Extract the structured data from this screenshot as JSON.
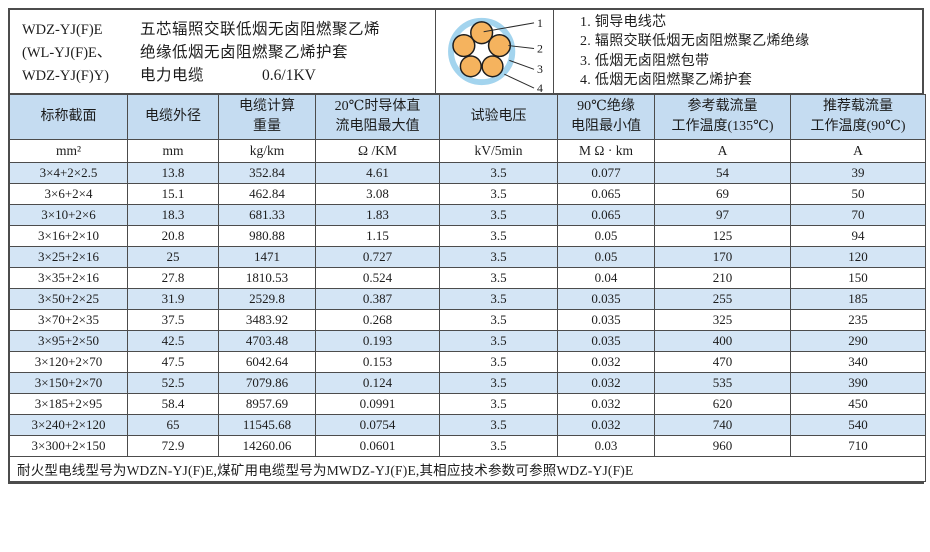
{
  "header": {
    "models": [
      "WDZ-YJ(F)E",
      "(WL-YJ(F)E、",
      "WDZ-YJ(F)Y)"
    ],
    "description_line1": "五芯辐照交联低烟无卤阻燃聚乙烯",
    "description_line2": "绝缘低烟无卤阻燃聚乙烯护套",
    "description_line3_label": "电力电缆",
    "description_line3_voltage": "0.6/1KV",
    "diagram_callouts": [
      "1",
      "2",
      "3",
      "4"
    ],
    "legend": [
      "1. 铜导电线芯",
      "2. 辐照交联低烟无卤阻燃聚乙烯绝缘",
      "3. 低烟无卤阻燃包带",
      "4. 低烟无卤阻燃聚乙烯护套"
    ]
  },
  "table": {
    "columns": [
      {
        "title": "标称截面",
        "unit": "mm²"
      },
      {
        "title": "电缆外径",
        "unit": "mm"
      },
      {
        "title": "电缆计算\n重量",
        "unit": "kg/km"
      },
      {
        "title": "20℃时导体直\n流电阻最大值",
        "unit": "Ω /KM"
      },
      {
        "title": "试验电压",
        "unit": "kV/5min"
      },
      {
        "title": "90℃绝缘\n电阻最小值",
        "unit": "M Ω · km"
      },
      {
        "title": "参考载流量\n工作温度(135℃)",
        "unit": "A"
      },
      {
        "title": "推荐载流量\n工作温度(90℃)",
        "unit": "A"
      }
    ],
    "rows": [
      [
        "3×4+2×2.5",
        "13.8",
        "352.84",
        "4.61",
        "3.5",
        "0.077",
        "54",
        "39"
      ],
      [
        "3×6+2×4",
        "15.1",
        "462.84",
        "3.08",
        "3.5",
        "0.065",
        "69",
        "50"
      ],
      [
        "3×10+2×6",
        "18.3",
        "681.33",
        "1.83",
        "3.5",
        "0.065",
        "97",
        "70"
      ],
      [
        "3×16+2×10",
        "20.8",
        "980.88",
        "1.15",
        "3.5",
        "0.05",
        "125",
        "94"
      ],
      [
        "3×25+2×16",
        "25",
        "1471",
        "0.727",
        "3.5",
        "0.05",
        "170",
        "120"
      ],
      [
        "3×35+2×16",
        "27.8",
        "1810.53",
        "0.524",
        "3.5",
        "0.04",
        "210",
        "150"
      ],
      [
        "3×50+2×25",
        "31.9",
        "2529.8",
        "0.387",
        "3.5",
        "0.035",
        "255",
        "185"
      ],
      [
        "3×70+2×35",
        "37.5",
        "3483.92",
        "0.268",
        "3.5",
        "0.035",
        "325",
        "235"
      ],
      [
        "3×95+2×50",
        "42.5",
        "4703.48",
        "0.193",
        "3.5",
        "0.035",
        "400",
        "290"
      ],
      [
        "3×120+2×70",
        "47.5",
        "6042.64",
        "0.153",
        "3.5",
        "0.032",
        "470",
        "340"
      ],
      [
        "3×150+2×70",
        "52.5",
        "7079.86",
        "0.124",
        "3.5",
        "0.032",
        "535",
        "390"
      ],
      [
        "3×185+2×95",
        "58.4",
        "8957.69",
        "0.0991",
        "3.5",
        "0.032",
        "620",
        "450"
      ],
      [
        "3×240+2×120",
        "65",
        "11545.68",
        "0.0754",
        "3.5",
        "0.032",
        "740",
        "540"
      ],
      [
        "3×300+2×150",
        "72.9",
        "14260.06",
        "0.0601",
        "3.5",
        "0.03",
        "960",
        "710"
      ]
    ],
    "footnote": "耐火型电线型号为WDZN-YJ(F)E,煤矿用电缆型号为MWDZ-YJ(F)E,其相应技术参数可参照WDZ-YJ(F)E"
  },
  "colors": {
    "header-bg": "#c5dcf1",
    "row-alt-bg": "#d4e5f5",
    "border": "#4c4c4c",
    "text": "#1c1c1c",
    "sheath-blue": "#a3d4ee",
    "core-orange": "#f5b35e"
  }
}
